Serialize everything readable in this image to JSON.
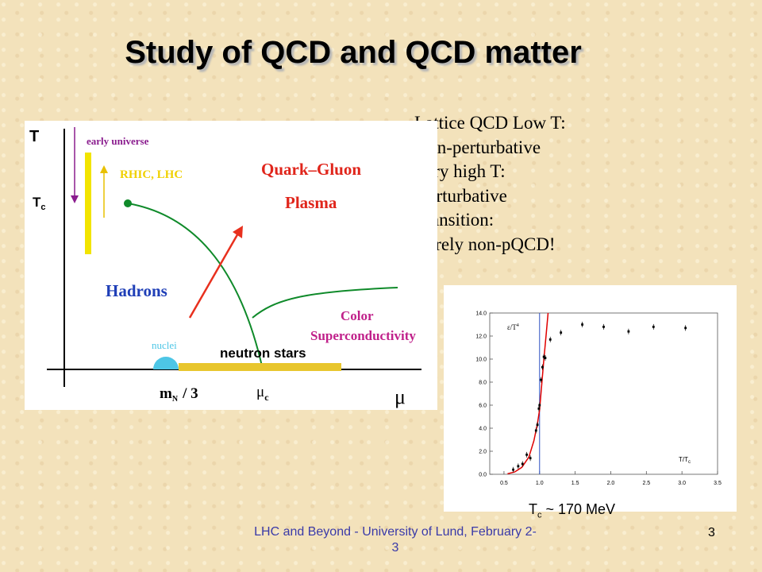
{
  "slide": {
    "title": "Study of QCD and QCD matter",
    "notes": [
      "Lattice QCD Low T:",
      " non-perturbative",
      "Very high T:",
      " perturbative",
      "Transition:",
      " surely non-pQCD!"
    ],
    "footer": "LHC and Beyond - University of Lund, February 2-3",
    "page_number": "3"
  },
  "phase_diagram": {
    "axis_t": "T",
    "tc_label": "T",
    "tc_sub": "c",
    "axis_mu": "μ",
    "mn_label": "m",
    "mn_sub": "N",
    "mn_suffix": "/ 3",
    "muc_label": "μ",
    "muc_sub": "c",
    "early_universe": "early universe",
    "rhic_lhc": "RHIC, LHC",
    "qgp_line1": "Quark–Gluon",
    "qgp_line2": "Plasma",
    "hadrons": "Hadrons",
    "color_line1": "Color",
    "color_line2": "Superconductivity",
    "nuclei": "nuclei",
    "neutron_stars": "neutron stars",
    "colors": {
      "boundary": "#0f8a2a",
      "arrow": "#e8301e",
      "purple": "#8a1c8e",
      "yellow": "#f2e400",
      "hadrons": "#1f3fb7",
      "qgp": "#e0251b",
      "csc": "#c0208a",
      "nuclei": "#4dc6e6",
      "neutron_band": "#e8c62e"
    }
  },
  "lattice_plot": {
    "caption": "T",
    "caption_sub": "c",
    "caption_suffix": " ~ 170 MeV",
    "chart_data": {
      "type": "scatter",
      "xlabel": "T/T",
      "xlabel_sub": "c",
      "ylabel": "ε/T",
      "ylabel_sup": "4",
      "xlim": [
        0.3,
        3.5
      ],
      "ylim": [
        0,
        14
      ],
      "xticks": [
        "0.5",
        "1.0",
        "1.5",
        "2.0",
        "2.5",
        "3.0",
        "3.5"
      ],
      "yticks": [
        "0.0",
        "2.0",
        "4.0",
        "6.0",
        "8.0",
        "10.0",
        "12.0",
        "14.0"
      ],
      "vline_x": 1.0,
      "points": [
        {
          "x": 0.63,
          "y": 0.4
        },
        {
          "x": 0.7,
          "y": 0.7
        },
        {
          "x": 0.76,
          "y": 0.9
        },
        {
          "x": 0.82,
          "y": 1.7
        },
        {
          "x": 0.87,
          "y": 1.4
        },
        {
          "x": 0.95,
          "y": 3.8
        },
        {
          "x": 0.97,
          "y": 4.3
        },
        {
          "x": 0.99,
          "y": 5.7
        },
        {
          "x": 1.0,
          "y": 6.0
        },
        {
          "x": 1.02,
          "y": 8.2
        },
        {
          "x": 1.04,
          "y": 9.3
        },
        {
          "x": 1.06,
          "y": 10.2
        },
        {
          "x": 1.08,
          "y": 10.1
        },
        {
          "x": 1.15,
          "y": 11.7
        },
        {
          "x": 1.3,
          "y": 12.3
        },
        {
          "x": 1.6,
          "y": 13.0
        },
        {
          "x": 1.9,
          "y": 12.8
        },
        {
          "x": 2.25,
          "y": 12.4
        },
        {
          "x": 2.6,
          "y": 12.8
        },
        {
          "x": 3.05,
          "y": 12.7
        }
      ],
      "curve": [
        {
          "x": 0.55,
          "y": 0.05
        },
        {
          "x": 0.65,
          "y": 0.2
        },
        {
          "x": 0.75,
          "y": 0.6
        },
        {
          "x": 0.85,
          "y": 1.5
        },
        {
          "x": 0.92,
          "y": 2.9
        },
        {
          "x": 0.97,
          "y": 4.4
        },
        {
          "x": 1.0,
          "y": 5.6
        },
        {
          "x": 1.03,
          "y": 7.8
        },
        {
          "x": 1.06,
          "y": 10.0
        },
        {
          "x": 1.09,
          "y": 12.0
        },
        {
          "x": 1.12,
          "y": 14.0
        }
      ],
      "colors": {
        "curve": "#e00000",
        "vline": "#2a4ec0",
        "points": "#000000"
      }
    }
  }
}
